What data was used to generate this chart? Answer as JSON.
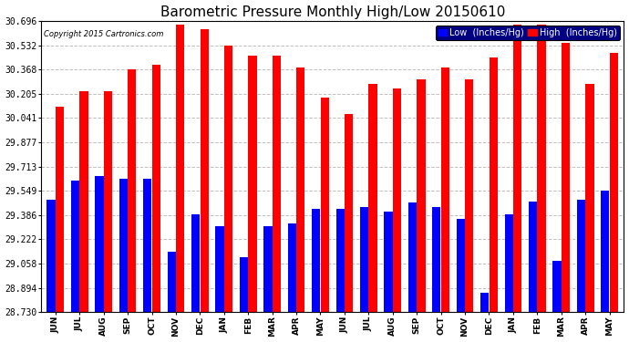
{
  "title": "Barometric Pressure Monthly High/Low 20150610",
  "copyright": "Copyright 2015 Cartronics.com",
  "legend_low": "Low  (Inches/Hg)",
  "legend_high": "High  (Inches/Hg)",
  "categories": [
    "JUN",
    "JUL",
    "AUG",
    "SEP",
    "OCT",
    "NOV",
    "DEC",
    "JAN",
    "FEB",
    "MAR",
    "APR",
    "MAY",
    "JUN",
    "JUL",
    "AUG",
    "SEP",
    "OCT",
    "NOV",
    "DEC",
    "JAN",
    "FEB",
    "MAR",
    "APR",
    "MAY"
  ],
  "high_values": [
    30.12,
    30.22,
    30.22,
    30.37,
    30.4,
    30.67,
    30.64,
    30.53,
    30.46,
    30.46,
    30.38,
    30.18,
    30.07,
    30.27,
    30.24,
    30.3,
    30.38,
    30.3,
    30.45,
    30.67,
    30.67,
    30.55,
    30.27,
    30.48
  ],
  "low_values": [
    29.49,
    29.62,
    29.65,
    29.63,
    29.63,
    29.14,
    29.39,
    29.31,
    29.1,
    29.31,
    29.33,
    29.43,
    29.43,
    29.44,
    29.41,
    29.47,
    29.44,
    29.36,
    28.86,
    29.39,
    29.48,
    29.08,
    29.49,
    29.55
  ],
  "bar_color_high": "#ff0000",
  "bar_color_low": "#0000ff",
  "bg_color": "#ffffff",
  "grid_color": "#c0c0c0",
  "ytick_labels": [
    28.73,
    28.894,
    29.058,
    29.222,
    29.386,
    29.549,
    29.713,
    29.877,
    30.041,
    30.205,
    30.368,
    30.532,
    30.696
  ],
  "ymin": 28.73,
  "ymax": 30.696,
  "title_fontsize": 11,
  "axis_label_fontsize": 6.5,
  "tick_fontsize": 7,
  "legend_fontsize": 7,
  "copyright_fontsize": 6
}
